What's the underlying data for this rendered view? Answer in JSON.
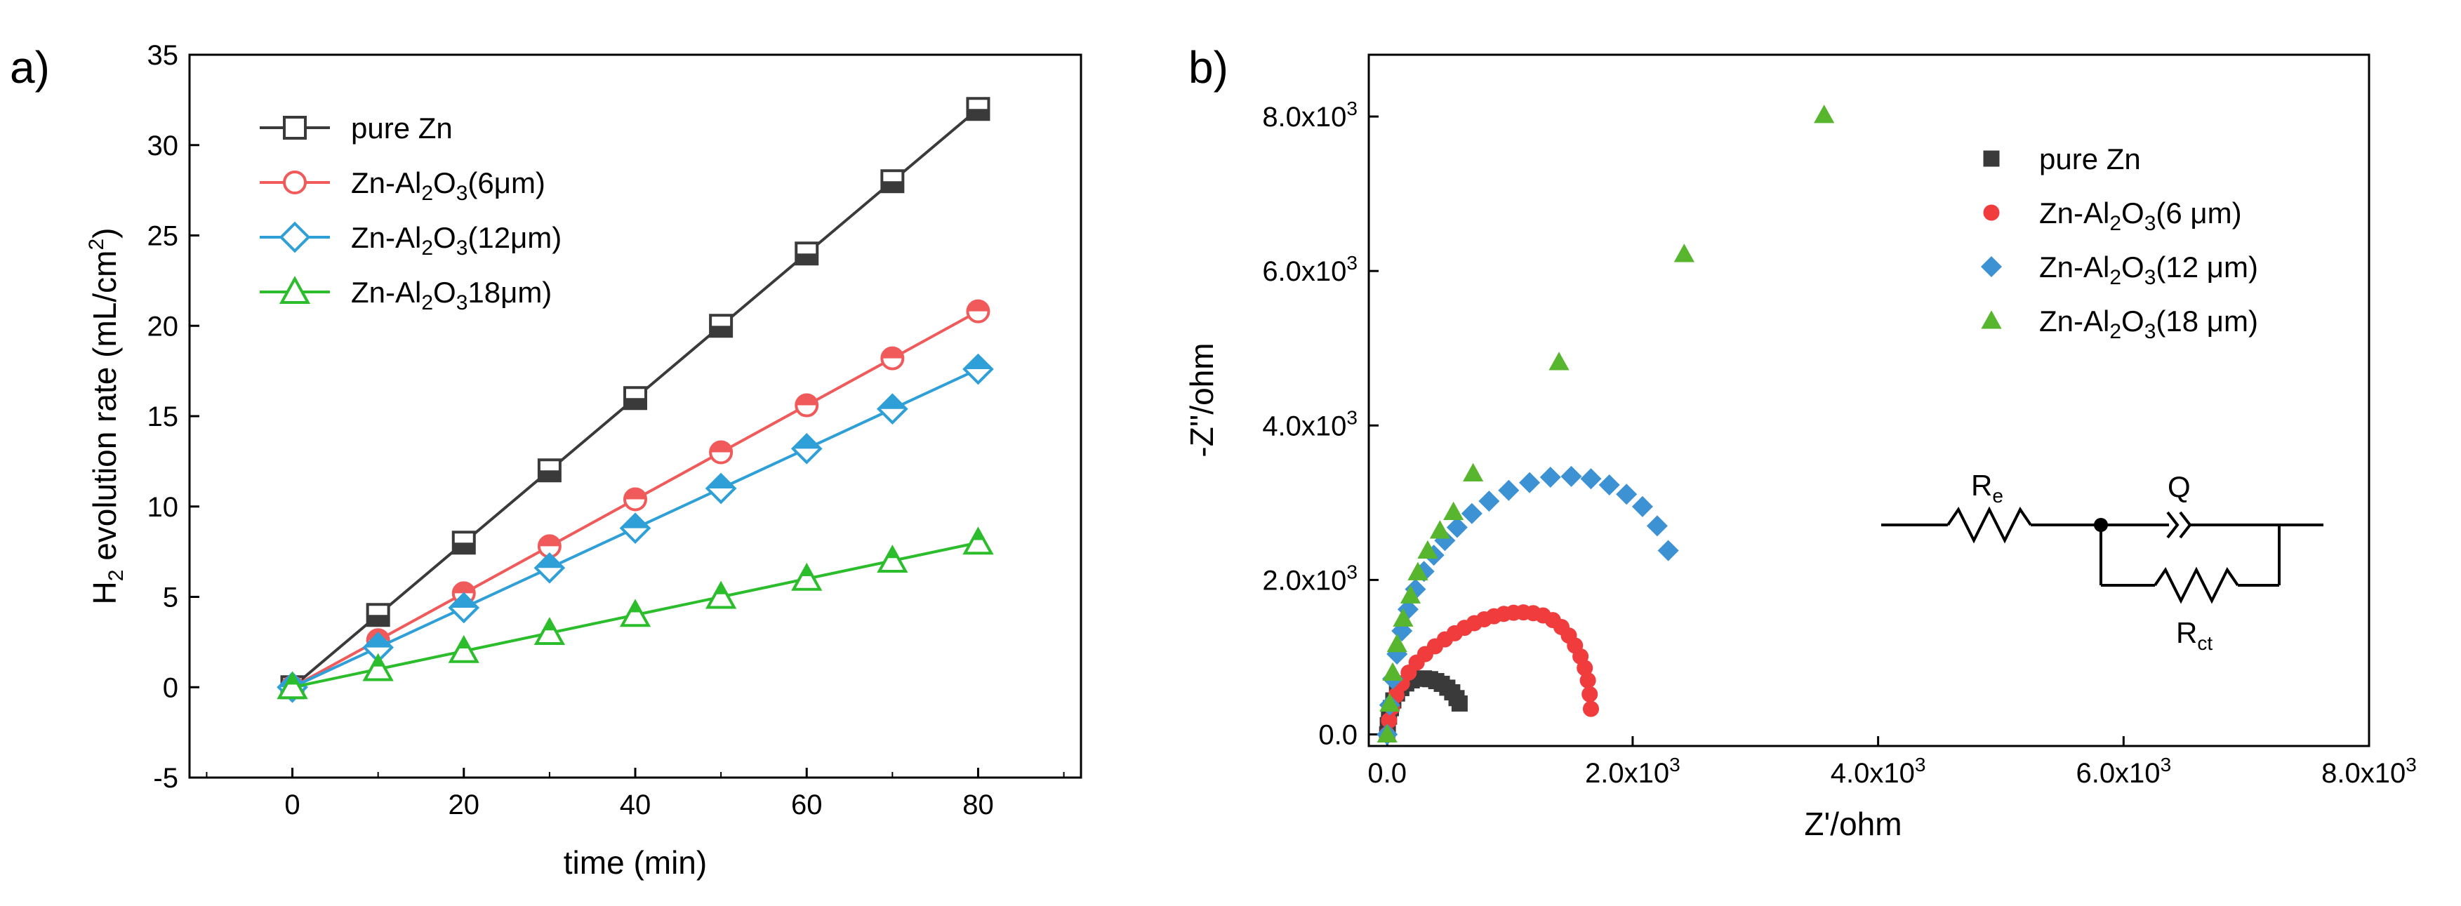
{
  "panels": [
    "a)",
    "b)"
  ],
  "chart_data": [
    {
      "type": "line",
      "panel": "a)",
      "title": "",
      "xlabel": "time (min)",
      "ylabel": "H2 evolution rate (mL/cm2)",
      "ylabel_parts": {
        "pre": "H",
        "sub": "2",
        "mid": " evolution rate (mL/cm",
        "sup": "2",
        "post": ")"
      },
      "xlim": [
        -12,
        92
      ],
      "ylim": [
        -5,
        35
      ],
      "xticks": [
        "0",
        "20",
        "40",
        "60",
        "80"
      ],
      "yticks": [
        "-5",
        "0",
        "5",
        "10",
        "15",
        "20",
        "25",
        "30",
        "35"
      ],
      "legend_position": "top-left",
      "x": [
        0,
        10,
        20,
        30,
        40,
        50,
        60,
        70,
        80
      ],
      "series": [
        {
          "name": "pure Zn",
          "label_parts": [
            "pure Zn"
          ],
          "marker": "square",
          "color": "#3a3a3a",
          "values": [
            0,
            4,
            8,
            12,
            16,
            20,
            24,
            28,
            32
          ]
        },
        {
          "name": "Zn-Al2O3(6μm)",
          "label_parts": [
            "Zn-Al",
            "2",
            "O",
            "3",
            "(6μm)"
          ],
          "marker": "circle",
          "color": "#f05a5a",
          "values": [
            0,
            2.6,
            5.2,
            7.8,
            10.4,
            13,
            15.6,
            18.2,
            20.8
          ]
        },
        {
          "name": "Zn-Al2O3(12μm)",
          "label_parts": [
            "Zn-Al",
            "2",
            "O",
            "3",
            "(12μm)"
          ],
          "marker": "diamond",
          "color": "#2f9fd8",
          "values": [
            0,
            2.2,
            4.4,
            6.6,
            8.8,
            11,
            13.2,
            15.4,
            17.6
          ]
        },
        {
          "name": "Zn-Al2O318μm)",
          "label_parts": [
            "Zn-Al",
            "2",
            "O",
            "3",
            "18μm)"
          ],
          "marker": "triangle",
          "color": "#2bbd2b",
          "values": [
            0,
            1,
            2,
            3,
            4,
            5,
            6,
            7,
            8
          ]
        }
      ]
    },
    {
      "type": "scatter",
      "panel": "b)",
      "title": "",
      "xlabel": "Z'/ohm",
      "ylabel": "-Z''/ohm",
      "xlim": [
        -150,
        8000
      ],
      "ylim": [
        -150,
        8800
      ],
      "xticks": [
        {
          "value": 0,
          "label": "0.0"
        },
        {
          "value": 2000,
          "label": "2.0x10",
          "exp": "3"
        },
        {
          "value": 4000,
          "label": "4.0x10",
          "exp": "3"
        },
        {
          "value": 6000,
          "label": "6.0x10",
          "exp": "3"
        },
        {
          "value": 8000,
          "label": "8.0x10",
          "exp": "3"
        }
      ],
      "yticks": [
        {
          "value": 0,
          "label": "0.0"
        },
        {
          "value": 2000,
          "label": "2.0x10",
          "exp": "3"
        },
        {
          "value": 4000,
          "label": "4.0x10",
          "exp": "3"
        },
        {
          "value": 6000,
          "label": "6.0x10",
          "exp": "3"
        },
        {
          "value": 8000,
          "label": "8.0x10",
          "exp": "3"
        }
      ],
      "legend_position": "top-right",
      "series": [
        {
          "name": "pure Zn",
          "label_parts": [
            "pure Zn"
          ],
          "marker": "square",
          "color": "#3a3a3a",
          "x": [
            0,
            5,
            15,
            30,
            50,
            80,
            115,
            155,
            200,
            250,
            300,
            350,
            400,
            445,
            490,
            530,
            565,
            590
          ],
          "y": [
            0,
            120,
            230,
            340,
            440,
            530,
            600,
            660,
            700,
            720,
            725,
            715,
            690,
            655,
            605,
            545,
            470,
            400
          ]
        },
        {
          "name": "Zn-Al2O3(6 μm)",
          "label_parts": [
            "Zn-Al",
            "2",
            "O",
            "3",
            "(6 μm)"
          ],
          "marker": "circle",
          "color": "#f03c3c",
          "x": [
            0,
            15,
            40,
            75,
            120,
            175,
            240,
            310,
            390,
            470,
            550,
            630,
            710,
            790,
            870,
            950,
            1030,
            1110,
            1190,
            1270,
            1350,
            1420,
            1480,
            1530,
            1575,
            1610,
            1635,
            1650,
            1660
          ],
          "y": [
            0,
            180,
            350,
            510,
            660,
            800,
            930,
            1040,
            1140,
            1230,
            1310,
            1380,
            1440,
            1490,
            1530,
            1560,
            1575,
            1580,
            1570,
            1540,
            1480,
            1390,
            1280,
            1150,
            1010,
            860,
            700,
            520,
            330
          ]
        },
        {
          "name": "Zn-Al2O3(12 μm)",
          "label_parts": [
            "Zn-Al",
            "2",
            "O",
            "3",
            "(12 μm)"
          ],
          "marker": "diamond",
          "color": "#3d92d4",
          "x": [
            0,
            20,
            45,
            80,
            120,
            170,
            230,
            300,
            380,
            470,
            570,
            690,
            830,
            990,
            1160,
            1330,
            1500,
            1660,
            1810,
            1950,
            2080,
            2200,
            2290
          ],
          "y": [
            0,
            380,
            720,
            1040,
            1340,
            1620,
            1880,
            2110,
            2320,
            2510,
            2680,
            2860,
            3020,
            3160,
            3260,
            3330,
            3340,
            3310,
            3230,
            3110,
            2950,
            2700,
            2380
          ]
        },
        {
          "name": "Zn-Al2O3(18 μm)",
          "label_parts": [
            "Zn-Al",
            "2",
            "O",
            "3",
            "(18 μm)"
          ],
          "marker": "triangle",
          "color": "#58b52e",
          "x": [
            0,
            20,
            45,
            80,
            130,
            190,
            250,
            330,
            430,
            540,
            700,
            1400,
            2420,
            3560
          ],
          "y": [
            0,
            400,
            800,
            1170,
            1500,
            1800,
            2100,
            2380,
            2640,
            2880,
            3380,
            4820,
            6220,
            8020
          ]
        }
      ],
      "circuit": {
        "labels": {
          "re": "Re",
          "re_main": "R",
          "re_sub": "e",
          "q": "Q",
          "rct_main": "R",
          "rct_sub": "ct"
        }
      }
    }
  ]
}
